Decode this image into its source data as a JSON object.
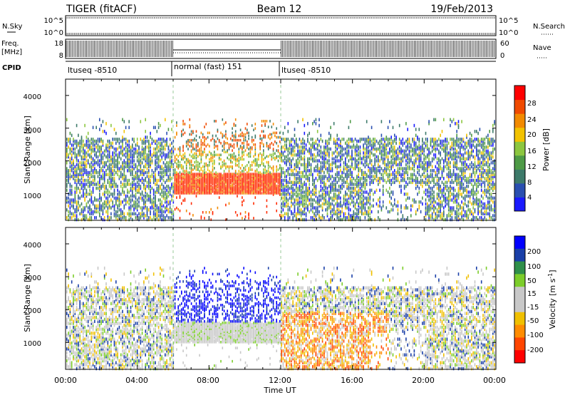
{
  "header": {
    "radar": "TIGER (fitACF)",
    "beam": "Beam 12",
    "date": "19/Feb/2013"
  },
  "left_labels": {
    "nsky": "N.Sky",
    "freq_line1": "Freq.",
    "freq_line2": "[MHz]",
    "cpid": "CPID"
  },
  "right_labels": {
    "nsearch": "N.Search",
    "nave": "Nave"
  },
  "noise_panel": {
    "left_ticks": [
      "10^5",
      "10^0"
    ],
    "right_ticks": [
      "10^5",
      "10^0"
    ]
  },
  "freq_panel": {
    "left_ticks": [
      "18",
      "8"
    ],
    "right_ticks": [
      "60",
      "0"
    ]
  },
  "cpid_panel": {
    "segments": [
      {
        "label": "ltuseq -8510",
        "start_hr": 0,
        "end_hr": 6
      },
      {
        "label": "normal (fast) 151",
        "start_hr": 6,
        "end_hr": 12
      },
      {
        "label": "ltuseq -8510",
        "start_hr": 12,
        "end_hr": 24
      }
    ]
  },
  "colors": {
    "power_scale": [
      "#1a1aff",
      "#2a4fb0",
      "#3d7a6a",
      "#4e9a46",
      "#8cc63f",
      "#f2c200",
      "#f28a00",
      "#f04a00",
      "#ff0000"
    ],
    "velocity_scale": [
      "#0000ff",
      "#1a3fa8",
      "#2f8f4a",
      "#7ccd2a",
      "#c8c8c8",
      "#c8c8c8",
      "#f0c000",
      "#ff8c00",
      "#ff4500",
      "#ff0000"
    ]
  },
  "chart_data": [
    {
      "type": "heatmap",
      "title": "",
      "xlabel": "",
      "ylabel": "Slant Range [km]",
      "xlim": [
        "00:00",
        "00:00"
      ],
      "ylim": [
        180,
        4500
      ],
      "y_ticks": [
        "1000",
        "2000",
        "3000",
        "4000"
      ],
      "colorbar": {
        "label": "Power [dB]",
        "ticks": [
          "4",
          "8",
          "12",
          "16",
          "20",
          "24",
          "28"
        ]
      },
      "grid": false
    },
    {
      "type": "heatmap",
      "title": "",
      "xlabel": "Time UT",
      "ylabel": "Slant Range [km]",
      "xlim": [
        "00:00",
        "00:00"
      ],
      "ylim": [
        180,
        4500
      ],
      "x_ticks": [
        "00:00",
        "04:00",
        "08:00",
        "12:00",
        "16:00",
        "20:00",
        "00:00"
      ],
      "y_ticks": [
        "1000",
        "2000",
        "3000",
        "4000"
      ],
      "colorbar": {
        "label": "Velocity [m s^-1]",
        "ticks": [
          "200",
          "100",
          "50",
          "15",
          "-15",
          "-50",
          "-100",
          "-200"
        ]
      },
      "grid": false
    }
  ]
}
